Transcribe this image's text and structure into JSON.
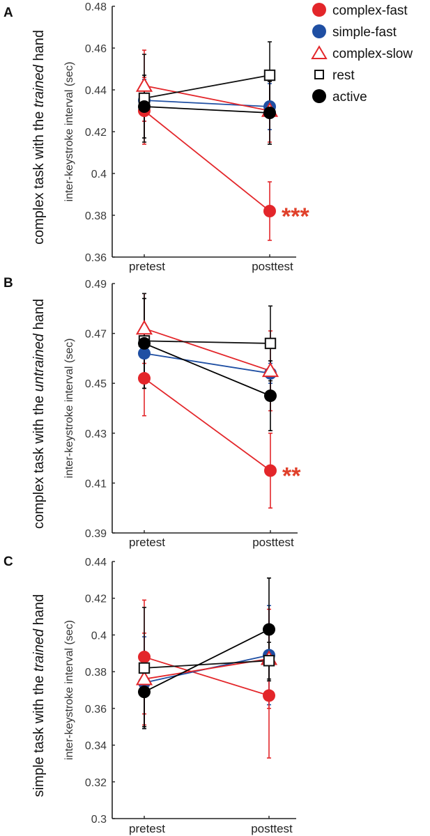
{
  "colors": {
    "complex-fast": "#e3262a",
    "simple-fast": "#1f4fa3",
    "complex-slow": "#e3262a",
    "rest": "#111111",
    "active": "#000000",
    "significance": "#e0402a"
  },
  "legend": [
    {
      "name": "complex-fast",
      "marker": "filled-circle"
    },
    {
      "name": "simple-fast",
      "marker": "filled-circle"
    },
    {
      "name": "complex-slow",
      "marker": "open-triangle"
    },
    {
      "name": "rest",
      "marker": "open-square"
    },
    {
      "name": "active",
      "marker": "filled-circle"
    }
  ],
  "chart_data": [
    {
      "panel": "A",
      "type": "line",
      "title_parts": [
        "complex task with the ",
        "trained",
        " hand"
      ],
      "ylabel": "inter-keystroke interval (sec)",
      "categories": [
        "pretest",
        "posttest"
      ],
      "ylim": [
        0.36,
        0.48
      ],
      "yticks": [
        "0.36",
        "0.38",
        "0.4",
        "0.42",
        "0.44",
        "0.46",
        "0.48"
      ],
      "significance": {
        "series": "complex-fast",
        "category": "posttest",
        "label": "***"
      },
      "series": [
        {
          "name": "complex-fast",
          "values": [
            0.43,
            0.382
          ],
          "errors": [
            0.016,
            0.014
          ]
        },
        {
          "name": "simple-fast",
          "values": [
            0.435,
            0.432
          ],
          "errors": [
            0.01,
            0.011
          ]
        },
        {
          "name": "complex-slow",
          "values": [
            0.442,
            0.43
          ],
          "errors": [
            0.017,
            0.015
          ]
        },
        {
          "name": "rest",
          "values": [
            0.436,
            0.447
          ],
          "errors": [
            0.021,
            0.016
          ]
        },
        {
          "name": "active",
          "values": [
            0.432,
            0.429
          ],
          "errors": [
            0.015,
            0.015
          ]
        }
      ]
    },
    {
      "panel": "B",
      "type": "line",
      "title_parts": [
        "complex task with the ",
        "untrained",
        " hand"
      ],
      "ylabel": "inter-keystroke interval (sec)",
      "categories": [
        "pretest",
        "posttest"
      ],
      "ylim": [
        0.39,
        0.49
      ],
      "yticks": [
        "0.39",
        "0.41",
        "0.43",
        "0.45",
        "0.47",
        "0.49"
      ],
      "significance": {
        "series": "complex-fast",
        "category": "posttest",
        "label": "**"
      },
      "series": [
        {
          "name": "complex-fast",
          "values": [
            0.452,
            0.415
          ],
          "errors": [
            0.015,
            0.015
          ]
        },
        {
          "name": "simple-fast",
          "values": [
            0.462,
            0.454
          ],
          "errors": [
            0.01,
            0.004
          ]
        },
        {
          "name": "complex-slow",
          "values": [
            0.472,
            0.455
          ],
          "errors": [
            0.014,
            0.016
          ]
        },
        {
          "name": "rest",
          "values": [
            0.467,
            0.466
          ],
          "errors": [
            0.019,
            0.015
          ]
        },
        {
          "name": "active",
          "values": [
            0.466,
            0.445
          ],
          "errors": [
            0.018,
            0.014
          ]
        }
      ]
    },
    {
      "panel": "C",
      "type": "line",
      "title_parts": [
        "simple task with the ",
        "trained",
        " hand"
      ],
      "ylabel": "inter-keystroke interval (sec)",
      "categories": [
        "pretest",
        "posttest"
      ],
      "ylim": [
        0.3,
        0.44
      ],
      "yticks": [
        "0.3",
        "0.32",
        "0.34",
        "0.36",
        "0.38",
        "0.4",
        "0.42",
        "0.44"
      ],
      "significance": null,
      "series": [
        {
          "name": "complex-fast",
          "values": [
            0.388,
            0.367
          ],
          "errors": [
            0.031,
            0.034
          ]
        },
        {
          "name": "simple-fast",
          "values": [
            0.374,
            0.389
          ],
          "errors": [
            0.025,
            0.027
          ]
        },
        {
          "name": "complex-slow",
          "values": [
            0.376,
            0.387
          ],
          "errors": [
            0.025,
            0.027
          ]
        },
        {
          "name": "rest",
          "values": [
            0.382,
            0.386
          ],
          "errors": [
            0.033,
            0.01
          ]
        },
        {
          "name": "active",
          "values": [
            0.369,
            0.403
          ],
          "errors": [
            0.019,
            0.028
          ]
        }
      ]
    }
  ]
}
